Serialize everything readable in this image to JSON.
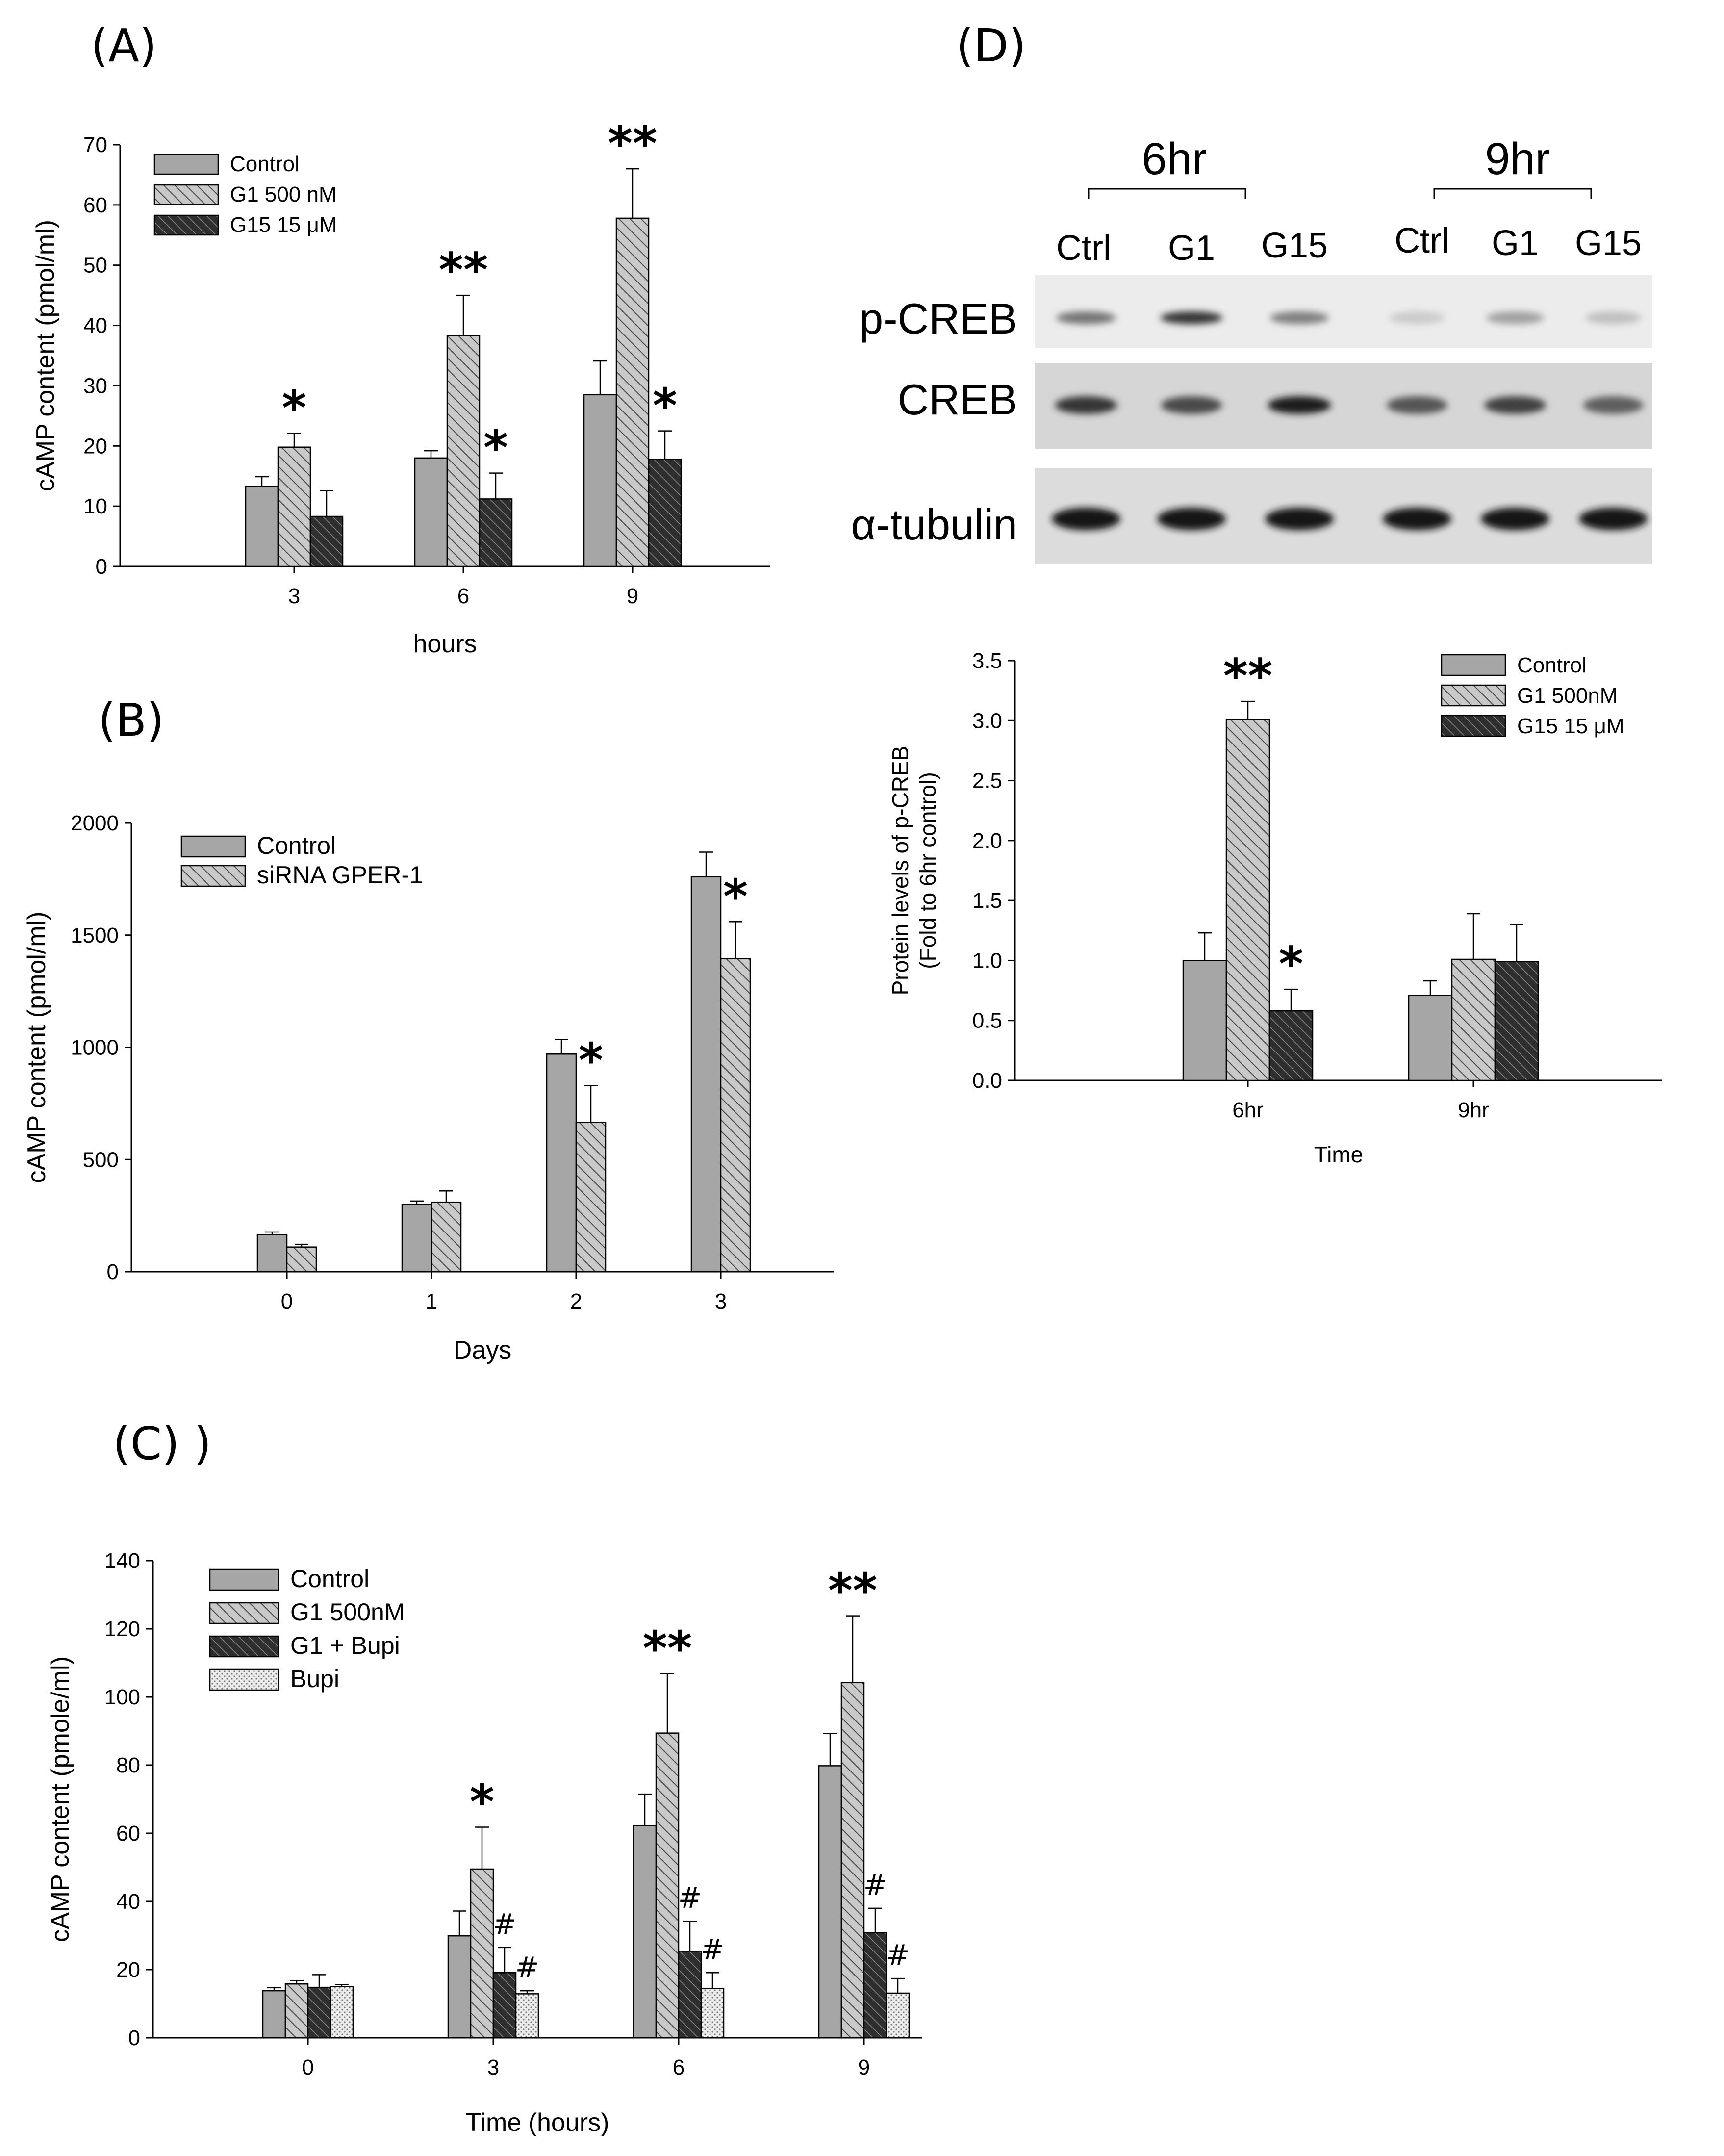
{
  "panels": {
    "A": "(A)",
    "B": "(B)",
    "C": "(C) )",
    "D": "(D)"
  },
  "colors": {
    "control": "#a6a6a6",
    "hatch_light": "#c4c4c4",
    "hatch_dark": "#3c3c3c",
    "dot": "#e9e9e9",
    "text": "#000000"
  },
  "chart_data": [
    {
      "id": "A",
      "type": "bar",
      "title": "",
      "xlabel": "hours",
      "ylabel": "cAMP content (pmol/ml)",
      "categories": [
        "3",
        "6",
        "9"
      ],
      "ylim": [
        0,
        70
      ],
      "yticks": [
        0,
        10,
        20,
        30,
        40,
        50,
        60,
        70
      ],
      "legend": [
        "Control",
        "G1 500 nM",
        "G15 15 μM"
      ],
      "series": [
        {
          "name": "Control",
          "style": "solid",
          "values": [
            13.3,
            18.0,
            28.5
          ],
          "errors": [
            1.6,
            1.2,
            5.6
          ]
        },
        {
          "name": "G1 500 nM",
          "style": "hatch",
          "values": [
            19.8,
            38.3,
            57.8
          ],
          "errors": [
            2.3,
            6.7,
            8.2
          ]
        },
        {
          "name": "G15 15 μM",
          "style": "dark",
          "values": [
            8.3,
            11.2,
            17.8
          ],
          "errors": [
            4.3,
            4.3,
            4.7
          ]
        }
      ],
      "annotations": [
        {
          "category": "3",
          "series": "G1 500 nM",
          "text": "*"
        },
        {
          "category": "6",
          "series": "G1 500 nM",
          "text": "**"
        },
        {
          "category": "6",
          "series": "G15 15 μM",
          "text": "*"
        },
        {
          "category": "9",
          "series": "G1 500 nM",
          "text": "**"
        },
        {
          "category": "9",
          "series": "G15 15 μM",
          "text": "*"
        }
      ]
    },
    {
      "id": "B",
      "type": "bar",
      "title": "",
      "xlabel": "Days",
      "ylabel": "cAMP content (pmol/ml)",
      "categories": [
        "0",
        "1",
        "2",
        "3"
      ],
      "ylim": [
        0,
        2000
      ],
      "yticks": [
        0,
        500,
        1000,
        1500,
        2000
      ],
      "legend": [
        "Control",
        "siRNA GPER-1"
      ],
      "series": [
        {
          "name": "Control",
          "style": "solid",
          "values": [
            165,
            300,
            970,
            1760
          ],
          "errors": [
            12,
            15,
            65,
            110
          ]
        },
        {
          "name": "siRNA GPER-1",
          "style": "hatch",
          "values": [
            110,
            310,
            665,
            1395
          ],
          "errors": [
            12,
            50,
            165,
            165
          ]
        }
      ],
      "annotations": [
        {
          "category": "2",
          "series": "siRNA GPER-1",
          "text": "*"
        },
        {
          "category": "3",
          "series": "siRNA GPER-1",
          "text": "*"
        }
      ]
    },
    {
      "id": "C",
      "type": "bar",
      "title": "",
      "xlabel": "Time (hours)",
      "ylabel": "cAMP content (pmole/ml)",
      "categories": [
        "0",
        "3",
        "6",
        "9"
      ],
      "ylim": [
        0,
        140
      ],
      "yticks": [
        0,
        20,
        40,
        60,
        80,
        100,
        120,
        140
      ],
      "legend": [
        "Control",
        "G1 500nM",
        "G1 + Bupi",
        "Bupi"
      ],
      "series": [
        {
          "name": "Control",
          "style": "solid",
          "values": [
            13.8,
            29.9,
            62.2,
            79.8
          ],
          "errors": [
            0.9,
            7.3,
            9.3,
            9.5
          ]
        },
        {
          "name": "G1 500nM",
          "style": "hatch",
          "values": [
            15.8,
            49.5,
            89.4,
            104.2
          ],
          "errors": [
            1.0,
            12.3,
            17.4,
            19.6
          ]
        },
        {
          "name": "G1 + Bupi",
          "style": "dark",
          "values": [
            14.8,
            19.1,
            25.4,
            30.8
          ],
          "errors": [
            3.7,
            7.4,
            8.8,
            7.2
          ]
        },
        {
          "name": "Bupi",
          "style": "dot",
          "values": [
            15.0,
            12.9,
            14.5,
            13.1
          ],
          "errors": [
            0.6,
            0.9,
            4.6,
            4.3
          ]
        }
      ],
      "annotations": [
        {
          "category": "3",
          "series": "G1 500nM",
          "text": "*"
        },
        {
          "category": "3",
          "series": "G1 + Bupi",
          "text": "#"
        },
        {
          "category": "3",
          "series": "Bupi",
          "text": "#"
        },
        {
          "category": "6",
          "series": "G1 500nM",
          "text": "**"
        },
        {
          "category": "6",
          "series": "G1 + Bupi",
          "text": "#"
        },
        {
          "category": "6",
          "series": "Bupi",
          "text": "#"
        },
        {
          "category": "9",
          "series": "G1 500nM",
          "text": "**"
        },
        {
          "category": "9",
          "series": "G1 + Bupi",
          "text": "#"
        },
        {
          "category": "9",
          "series": "Bupi",
          "text": "#"
        }
      ]
    },
    {
      "id": "D",
      "type": "bar",
      "title": "",
      "xlabel": "Time",
      "ylabel": "Protein levels of p-CREB\n(Fold to 6hr control)",
      "categories": [
        "6hr",
        "9hr"
      ],
      "ylim": [
        0,
        3.5
      ],
      "yticks": [
        "0.0",
        "0.5",
        "1.0",
        "1.5",
        "2.0",
        "2.5",
        "3.0",
        "3.5"
      ],
      "legend": [
        "Control",
        "G1 500nM",
        "G15 15 μM"
      ],
      "series": [
        {
          "name": "Control",
          "style": "solid",
          "values": [
            1.0,
            0.71
          ],
          "errors": [
            0.23,
            0.12
          ]
        },
        {
          "name": "G1 500nM",
          "style": "hatch",
          "values": [
            3.01,
            1.01
          ],
          "errors": [
            0.15,
            0.38
          ]
        },
        {
          "name": "G15 15 μM",
          "style": "dark",
          "values": [
            0.58,
            0.99
          ],
          "errors": [
            0.18,
            0.31
          ]
        }
      ],
      "annotations": [
        {
          "category": "6hr",
          "series": "G1 500nM",
          "text": "**"
        },
        {
          "category": "6hr",
          "series": "G15 15 μM",
          "text": "*"
        }
      ]
    }
  ],
  "western_blot": {
    "groups": [
      "6hr",
      "9hr"
    ],
    "lanes": [
      "Ctrl",
      "G1",
      "G15",
      "Ctrl",
      "G1",
      "G15"
    ],
    "rows": [
      {
        "label": "p-CREB",
        "intensities": [
          0.55,
          0.85,
          0.5,
          0.15,
          0.35,
          0.2
        ]
      },
      {
        "label": "CREB",
        "intensities": [
          0.85,
          0.75,
          0.95,
          0.7,
          0.8,
          0.65
        ]
      },
      {
        "label": "α-tubulin",
        "intensities": [
          1.0,
          1.0,
          1.0,
          1.0,
          1.0,
          1.0
        ]
      }
    ]
  }
}
